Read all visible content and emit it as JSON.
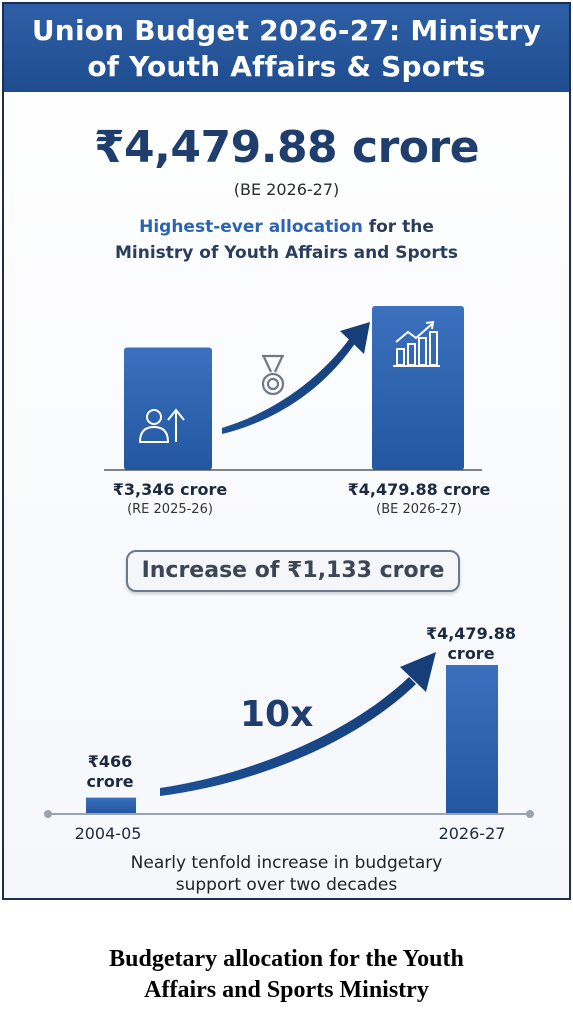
{
  "title_line1": "Union Budget 2026-27: Ministry",
  "title_line2": "of Youth Affairs & Sports",
  "hero": {
    "amount": "₹4,479.88 crore",
    "period": "(BE 2026-27)",
    "tagline_highlight": "Highest-ever allocation",
    "tagline_rest": " for the",
    "tagline_line2": "Ministry of Youth Affairs and Sports"
  },
  "increase_text": "Increase of ₹1,133 crore",
  "multiplier": "10x",
  "footnote_line1": "Nearly tenfold increase in budgetary",
  "footnote_line2": "support over two decades",
  "caption_line1": "Budgetary allocation for the Youth",
  "caption_line2": "Affairs and Sports Ministry",
  "icons": [
    "person-rising-icon",
    "medal-icon",
    "growth-chart-icon"
  ],
  "colors": {
    "banner": "#2e5fa6",
    "bar": "#2d62ad",
    "text_dark": "#1f3e6e"
  },
  "chart_data": [
    {
      "type": "bar",
      "categories": [
        "RE 2025-26",
        "BE 2026-27"
      ],
      "values": [
        3346,
        4479.88
      ],
      "value_labels": [
        "₹3,346 crore",
        "₹4,479.88 crore"
      ],
      "period_labels": [
        "(RE 2025-26)",
        "(BE 2026-27)"
      ],
      "unit": "crore"
    },
    {
      "type": "bar",
      "categories": [
        "2004-05",
        "2026-27"
      ],
      "values": [
        466,
        4479.88
      ],
      "value_labels_line1": [
        "₹466",
        "₹4,479.88"
      ],
      "value_labels_line2": [
        "crore",
        "crore"
      ],
      "unit": "crore"
    }
  ]
}
